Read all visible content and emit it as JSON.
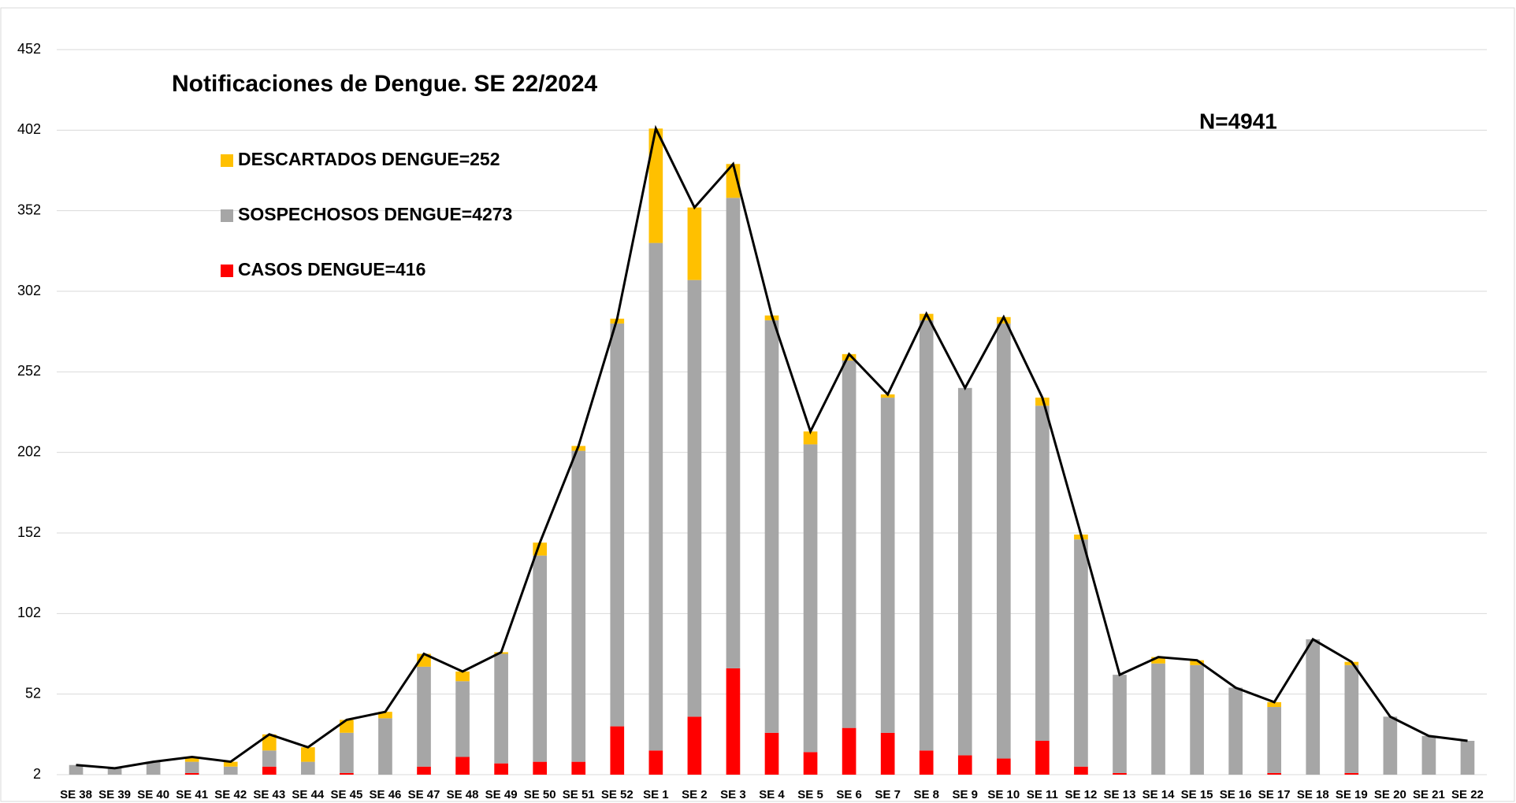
{
  "chart_data": {
    "type": "stacked_bar",
    "title": "Notificaciones de Dengue. SE 22/2024",
    "annotation": "N=4941",
    "categories": [
      "SE 38",
      "SE 39",
      "SE 40",
      "SE 41",
      "SE 42",
      "SE 43",
      "SE 44",
      "SE 45",
      "SE 46",
      "SE 47",
      "SE 48",
      "SE 49",
      "SE 50",
      "SE 51",
      "SE 52",
      "SE 1",
      "SE 2",
      "SE 3",
      "SE 4",
      "SE 5",
      "SE 6",
      "SE 7",
      "SE 8",
      "SE 9",
      "SE 10",
      "SE 11",
      "SE 12",
      "SE 13",
      "SE 14",
      "SE 15",
      "SE 16",
      "SE 17",
      "SE 18",
      "SE 19",
      "SE 20",
      "SE 21",
      "SE 22"
    ],
    "series": [
      {
        "name": "CASOS DENGUE=416",
        "color": "#ff0000",
        "values": [
          0,
          0,
          0,
          1,
          0,
          5,
          0,
          1,
          0,
          5,
          11,
          7,
          8,
          8,
          30,
          15,
          36,
          66,
          26,
          14,
          29,
          26,
          15,
          12,
          10,
          21,
          5,
          1,
          0,
          0,
          0,
          1,
          0,
          1,
          0,
          0,
          0
        ]
      },
      {
        "name": "SOSPECHOSOS DENGUE=4273",
        "color": "#a6a6a6",
        "values": [
          6,
          4,
          8,
          7,
          5,
          10,
          8,
          25,
          35,
          62,
          47,
          68,
          128,
          193,
          250,
          315,
          271,
          292,
          256,
          191,
          228,
          208,
          267,
          228,
          270,
          208,
          141,
          61,
          69,
          68,
          54,
          41,
          84,
          67,
          36,
          24,
          21
        ]
      },
      {
        "name": "DESCARTADOS DENGUE=252",
        "color": "#ffc000",
        "values": [
          0,
          0,
          0,
          3,
          3,
          10,
          9,
          8,
          4,
          8,
          6,
          1,
          8,
          3,
          3,
          71,
          45,
          21,
          3,
          8,
          4,
          2,
          4,
          0,
          4,
          5,
          3,
          0,
          4,
          3,
          0,
          3,
          0,
          2,
          0,
          0,
          0
        ]
      }
    ],
    "line": {
      "color": "#000000",
      "values": [
        6,
        4,
        8,
        11,
        8,
        25,
        17,
        34,
        39,
        75,
        64,
        76,
        144,
        204,
        283,
        401,
        352,
        379,
        285,
        213,
        261,
        236,
        286,
        240,
        284,
        234,
        149,
        62,
        73,
        71,
        54,
        45,
        84,
        70,
        36,
        24,
        21
      ]
    },
    "ylim": [
      2,
      452
    ],
    "yticks": [
      2,
      52,
      102,
      152,
      202,
      252,
      302,
      352,
      402,
      452
    ],
    "grid": true
  }
}
